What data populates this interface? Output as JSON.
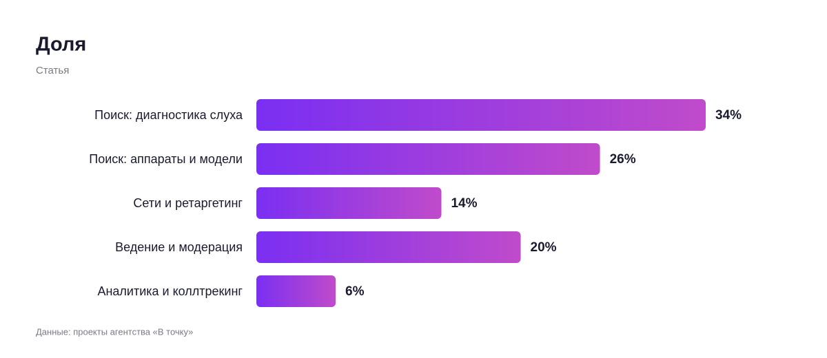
{
  "chart_data": {
    "type": "bar",
    "orientation": "horizontal",
    "title": "Доля",
    "subtitle": "Статья",
    "categories": [
      "Поиск: диагностика слуха",
      "Поиск: аппараты и модели",
      "Сети и ретаргетинг",
      "Ведение и модерация",
      "Аналитика и коллтрекинг"
    ],
    "values": [
      34,
      26,
      14,
      20,
      6
    ],
    "value_labels": [
      "34%",
      "26%",
      "14%",
      "20%",
      "6%"
    ],
    "gradient": [
      "#7a2ff2",
      "#c04bcb"
    ],
    "source": "Данные: проекты агентства «В точку»"
  }
}
